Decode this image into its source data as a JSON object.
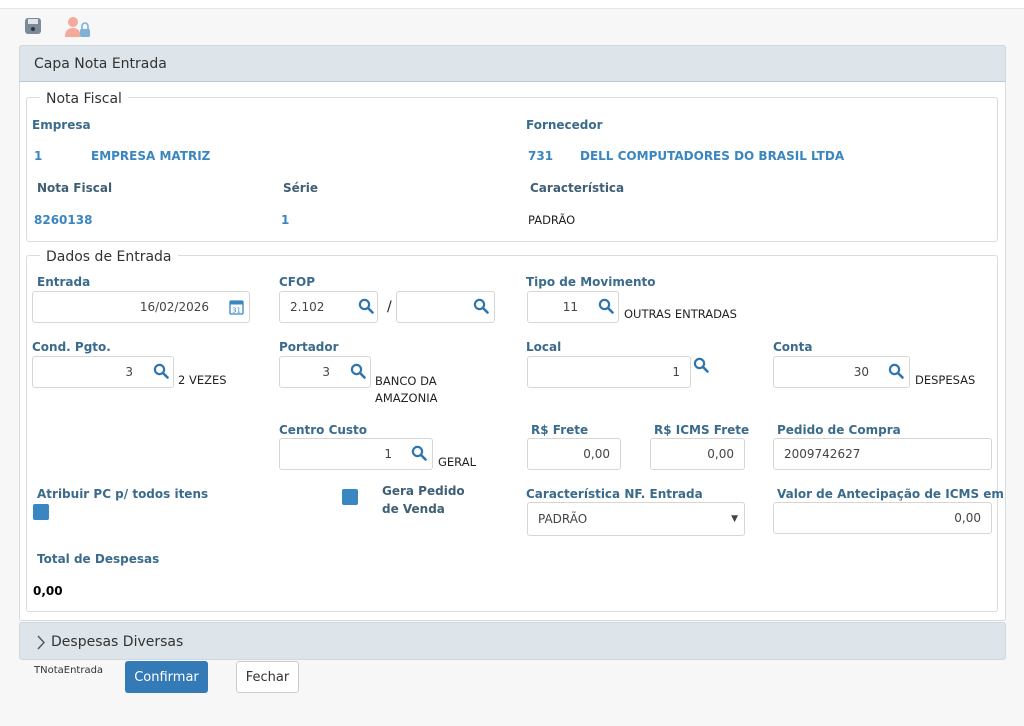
{
  "toolbar": {
    "save_icon": "save-icon",
    "user_lock_icon": "user-lock-icon"
  },
  "panel": {
    "title": "Capa Nota Entrada"
  },
  "nota_fiscal": {
    "legend": "Nota Fiscal",
    "empresa_label": "Empresa",
    "empresa_code": "1",
    "empresa_name": "EMPRESA MATRIZ",
    "fornecedor_label": "Fornecedor",
    "fornecedor_code": "731",
    "fornecedor_name": "DELL COMPUTADORES DO BRASIL LTDA",
    "nota_label": "Nota Fiscal",
    "nota_value": "8260138",
    "serie_label": "Série",
    "serie_value": "1",
    "caracteristica_label": "Característica",
    "caracteristica_value": "PADRÃO"
  },
  "dados": {
    "legend": "Dados de Entrada",
    "entrada_label": "Entrada",
    "entrada_value": "16/02/2026",
    "cfop_label": "CFOP",
    "cfop_value": "2.102",
    "cfop_sep": "/",
    "cfop2_value": "",
    "tipo_label": "Tipo de Movimento",
    "tipo_value": "11",
    "tipo_desc": "OUTRAS ENTRADAS",
    "cond_label": "Cond. Pgto.",
    "cond_value": "3",
    "cond_desc": "2 VEZES",
    "portador_label": "Portador",
    "portador_value": "3",
    "portador_desc": "BANCO DA AMAZONIA",
    "local_label": "Local",
    "local_value": "1",
    "conta_label": "Conta",
    "conta_value": "30",
    "conta_desc": "DESPESAS",
    "centro_label": "Centro Custo",
    "centro_value": "1",
    "centro_desc": "GERAL",
    "frete_label": "R$ Frete",
    "frete_value": "0,00",
    "icms_frete_label": "R$ ICMS Frete",
    "icms_frete_value": "0,00",
    "pedido_label": "Pedido de Compra",
    "pedido_value": "2009742627",
    "atribuir_label": "Atribuir PC p/ todos itens",
    "gera_label": "Gera Pedido de Venda",
    "carac_nf_label": "Característica NF. Entrada",
    "carac_nf_value": "PADRÃO",
    "antecipacao_label": "Valor de Antecipação de ICMS em SC",
    "antecipacao_value": "0,00",
    "total_label": "Total de Despesas",
    "total_value": "0,00"
  },
  "despesas": {
    "title": "Despesas Diversas"
  },
  "footer": {
    "form_name": "TNotaEntrada",
    "confirm": "Confirmar",
    "close": "Fechar"
  },
  "colors": {
    "accent": "#3a86c0",
    "label": "#3b6b8c",
    "header": "#dde5ea",
    "confirm": "#337ab7"
  }
}
